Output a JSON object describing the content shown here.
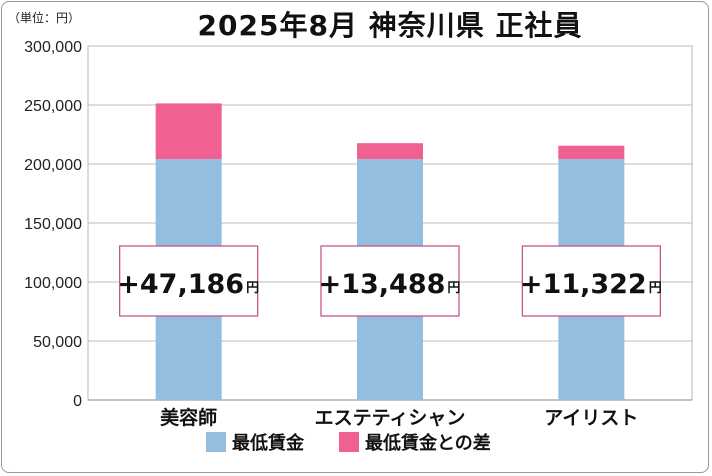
{
  "header": {
    "unit_note": "（単位：円）",
    "title": "2025年8月 神奈川県 正社員"
  },
  "chart_data": {
    "type": "bar",
    "stacked": true,
    "title": "2025年8月 神奈川県 正社員",
    "unit": "（単位：円）",
    "categories": [
      "美容師",
      "エステティシャン",
      "アイリスト"
    ],
    "series": [
      {
        "name": "最低賃金",
        "color": "#94bedf",
        "values": [
          204160,
          204160,
          204160
        ]
      },
      {
        "name": "最低賃金との差",
        "color": "#f06090",
        "values": [
          47186,
          13488,
          11322
        ]
      }
    ],
    "diff_labels": [
      "+47,186",
      "+13,488",
      "+11,322"
    ],
    "diff_unit": "円",
    "ylim": [
      0,
      300000
    ],
    "yticks": [
      0,
      50000,
      100000,
      150000,
      200000,
      250000,
      300000
    ],
    "ytick_labels": [
      "0",
      "50,000",
      "100,000",
      "150,000",
      "200,000",
      "250,000",
      "300,000"
    ],
    "grid": true,
    "legend_position": "bottom"
  }
}
